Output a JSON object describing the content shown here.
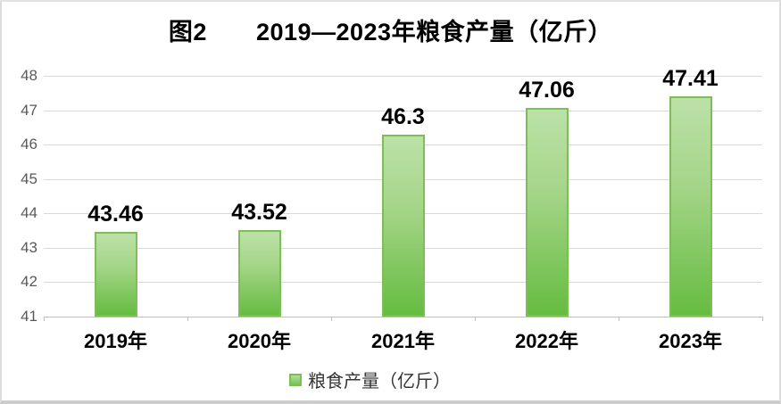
{
  "chart_data": {
    "type": "bar",
    "title": "图2　　2019—2023年粮食产量（亿斤）",
    "categories": [
      "2019年",
      "2020年",
      "2021年",
      "2022年",
      "2023年"
    ],
    "values": [
      43.46,
      43.52,
      46.3,
      47.06,
      47.41
    ],
    "data_labels": [
      "43.46",
      "43.52",
      "46.3",
      "47.06",
      "47.41"
    ],
    "legend": {
      "label": "粮食产量（亿斤）",
      "position": "bottom",
      "marker": "square-icon"
    },
    "xlabel": "",
    "ylabel": "",
    "ylim": [
      41,
      48
    ],
    "y_ticks": [
      48,
      47,
      46,
      45,
      44,
      43,
      42,
      41
    ],
    "grid": "horizontal",
    "colors": {
      "bar_fill_top": "#bce1a8",
      "bar_fill_bottom": "#66bc41",
      "bar_border": "#7dbf56",
      "gridline": "#d9d9d9",
      "axis_line": "#bfbfbf",
      "y_label_color": "#595959",
      "text_color": "#000000"
    }
  }
}
